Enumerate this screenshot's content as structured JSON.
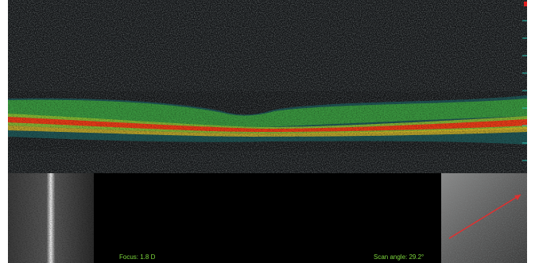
{
  "labels": {
    "focus": "Focus: 1.8 D",
    "scan_angle": "Scan angle: 29.2°"
  }
}
